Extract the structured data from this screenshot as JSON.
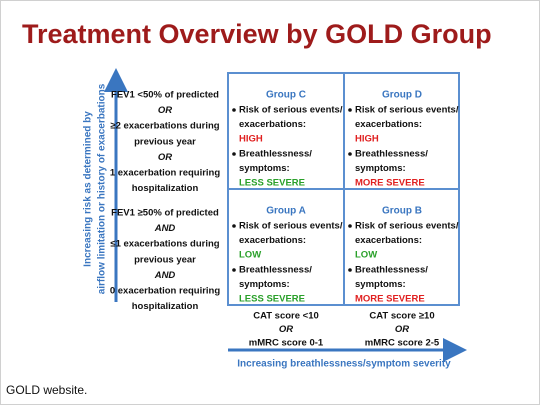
{
  "title": "Treatment Overview by GOLD Group",
  "y_axis_label": [
    "Increasing risk as determined by",
    "airflow limitation or history of exacerbations"
  ],
  "x_axis_label": "Increasing breathlessness/symptom severity",
  "rows": [
    {
      "criteria": [
        "FEV1 <50% of predicted",
        "OR",
        "≥2 exacerbations during",
        "previous year",
        "OR",
        "1 exacerbation requiring",
        "hospitalization"
      ]
    },
    {
      "criteria": [
        "FEV1 ≥50% of predicted",
        "AND",
        "≤1 exacerbations during",
        "previous year",
        "AND",
        "0 exacerbation requiring",
        "hospitalization"
      ]
    }
  ],
  "cells": [
    {
      "group": "Group C",
      "risk_lines": [
        "Risk of serious events/",
        "exacerbations:"
      ],
      "risk": "HIGH",
      "risk_color": "#e02020",
      "symptom_lines": [
        "Breathlessness/",
        "symptoms:"
      ],
      "symptom": "LESS SEVERE",
      "symptom_color": "#2aa02a"
    },
    {
      "group": "Group D",
      "risk_lines": [
        "Risk of serious events/",
        "exacerbations:"
      ],
      "risk": "HIGH",
      "risk_color": "#e02020",
      "symptom_lines": [
        "Breathlessness/",
        "symptoms:"
      ],
      "symptom": "MORE SEVERE",
      "symptom_color": "#e02020"
    },
    {
      "group": "Group A",
      "risk_lines": [
        "Risk of serious events/",
        "exacerbations:"
      ],
      "risk": "LOW",
      "risk_color": "#2aa02a",
      "symptom_lines": [
        "Breathlessness/",
        "symptoms:"
      ],
      "symptom": "LESS SEVERE",
      "symptom_color": "#2aa02a"
    },
    {
      "group": "Group B",
      "risk_lines": [
        "Risk of serious events/",
        "exacerbations:"
      ],
      "risk": "LOW",
      "risk_color": "#2aa02a",
      "symptom_lines": [
        "Breathlessness/",
        "symptoms:"
      ],
      "symptom": "MORE SEVERE",
      "symptom_color": "#e02020"
    }
  ],
  "columns": [
    {
      "lines": [
        "CAT score <10",
        "OR",
        "mMRC score 0-1"
      ]
    },
    {
      "lines": [
        "CAT score ≥10",
        "OR",
        "mMRC score 2-5"
      ]
    }
  ],
  "footer": "GOLD website."
}
